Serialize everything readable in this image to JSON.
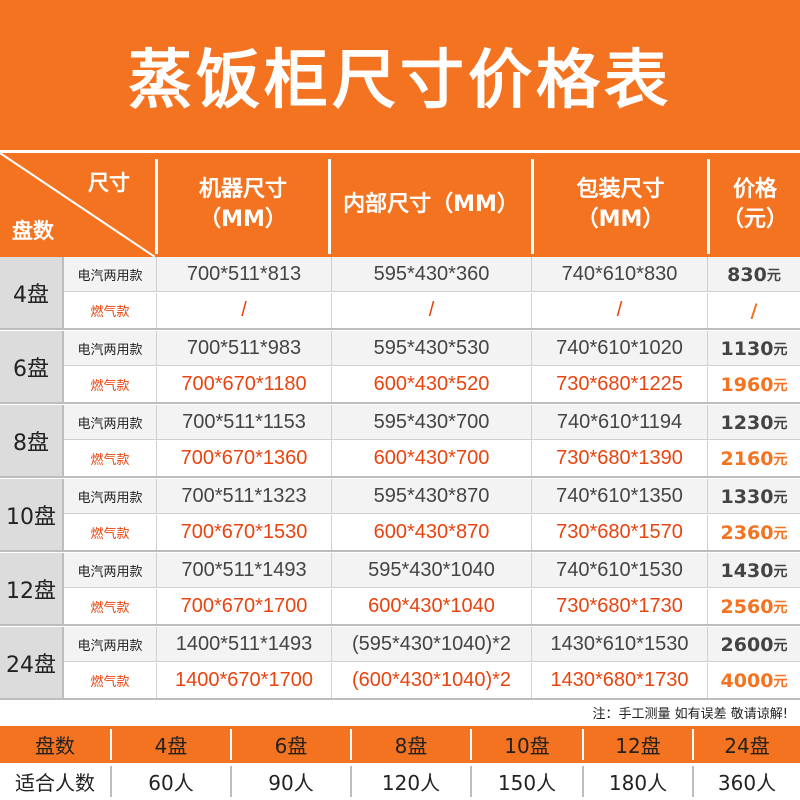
{
  "title": "蒸饭柜尺寸价格表",
  "header": {
    "corner_size": "尺寸",
    "corner_tray": "盘数",
    "machine_l1": "机器尺寸",
    "machine_l2": "（MM）",
    "inner": "内部尺寸（MM）",
    "pack_l1": "包装尺寸",
    "pack_l2": "（MM）",
    "price_l1": "价格",
    "price_l2": "（元）"
  },
  "rows": [
    {
      "tray": "4盘",
      "a": {
        "type": "电汽两用款",
        "machine": "700*511*813",
        "inner": "595*430*360",
        "pack": "740*610*830",
        "price": "830",
        "unit": "元"
      },
      "b": {
        "type": "燃气款",
        "machine": "/",
        "inner": "/",
        "pack": "/",
        "price": "/",
        "unit": ""
      }
    },
    {
      "tray": "6盘",
      "a": {
        "type": "电汽两用款",
        "machine": "700*511*983",
        "inner": "595*430*530",
        "pack": "740*610*1020",
        "price": "1130",
        "unit": "元"
      },
      "b": {
        "type": "燃气款",
        "machine": "700*670*1180",
        "inner": "600*430*520",
        "pack": "730*680*1225",
        "price": "1960",
        "unit": "元"
      }
    },
    {
      "tray": "8盘",
      "a": {
        "type": "电汽两用款",
        "machine": "700*511*1153",
        "inner": "595*430*700",
        "pack": "740*610*1194",
        "price": "1230",
        "unit": "元"
      },
      "b": {
        "type": "燃气款",
        "machine": "700*670*1360",
        "inner": "600*430*700",
        "pack": "730*680*1390",
        "price": "2160",
        "unit": "元"
      }
    },
    {
      "tray": "10盘",
      "a": {
        "type": "电汽两用款",
        "machine": "700*511*1323",
        "inner": "595*430*870",
        "pack": "740*610*1350",
        "price": "1330",
        "unit": "元"
      },
      "b": {
        "type": "燃气款",
        "machine": "700*670*1530",
        "inner": "600*430*870",
        "pack": "730*680*1570",
        "price": "2360",
        "unit": "元"
      }
    },
    {
      "tray": "12盘",
      "a": {
        "type": "电汽两用款",
        "machine": "700*511*1493",
        "inner": "595*430*1040",
        "pack": "740*610*1530",
        "price": "1430",
        "unit": "元"
      },
      "b": {
        "type": "燃气款",
        "machine": "700*670*1700",
        "inner": "600*430*1040",
        "pack": "730*680*1730",
        "price": "2560",
        "unit": "元"
      }
    },
    {
      "tray": "24盘",
      "a": {
        "type": "电汽两用款",
        "machine": "1400*511*1493",
        "inner": "(595*430*1040)*2",
        "pack": "1430*610*1530",
        "price": "2600",
        "unit": "元"
      },
      "b": {
        "type": "燃气款",
        "machine": "1400*670*1700",
        "inner": "(600*430*1040)*2",
        "pack": "1430*680*1730",
        "price": "4000",
        "unit": "元"
      }
    }
  ],
  "note": "注：手工测量 如有误差 敬请谅解!",
  "capacity": {
    "header_label": "盘数",
    "trays": [
      "4盘",
      "6盘",
      "8盘",
      "10盘",
      "12盘",
      "24盘"
    ],
    "people_label": "适合人数",
    "people": [
      "60人",
      "90人",
      "120人",
      "150人",
      "180人",
      "360人"
    ]
  },
  "colors": {
    "accent": "#f47320",
    "gas_text": "#e8440f"
  }
}
